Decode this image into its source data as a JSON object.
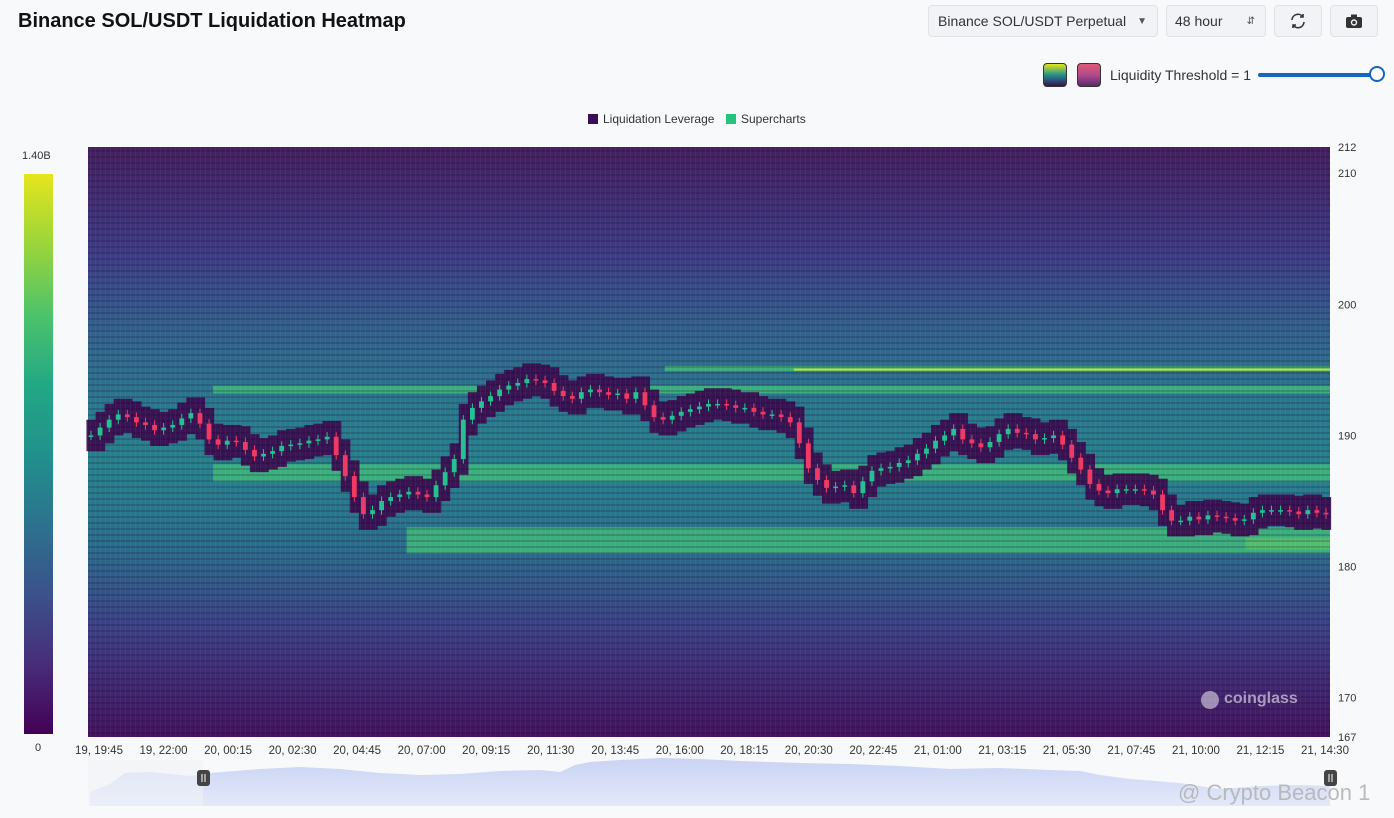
{
  "header": {
    "title": "Binance SOL/USDT Liquidation Heatmap",
    "pair_select": "Binance SOL/USDT Perpetual",
    "range_select": "48 hour"
  },
  "icons": {
    "refresh": "refresh-icon",
    "camera": "camera-icon",
    "palette_viridis": "viridis-palette-icon",
    "palette_rose": "rose-palette-icon"
  },
  "threshold": {
    "label": "Liquidity Threshold = 1",
    "value": 1
  },
  "colorbar": {
    "max_label": "1.40B",
    "min_label": "0"
  },
  "watermarks": {
    "brand": "coinglass",
    "credit": "@ Crypto Beacon 1"
  },
  "colors": {
    "up": "#26c193",
    "down": "#ef3a63",
    "navigator": "#d5dcf3"
  },
  "chart_data": {
    "type": "heatmap",
    "title": "Binance SOL/USDT Liquidation Heatmap",
    "legend": [
      {
        "name": "Liquidation Leverage",
        "color": "#3b0f58"
      },
      {
        "name": "Supercharts",
        "color": "#27c27e"
      }
    ],
    "x_ticks": [
      "19, 19:45",
      "19, 22:00",
      "20, 00:15",
      "20, 02:30",
      "20, 04:45",
      "20, 07:00",
      "20, 09:15",
      "20, 11:30",
      "20, 13:45",
      "20, 16:00",
      "20, 18:15",
      "20, 20:30",
      "20, 22:45",
      "21, 01:00",
      "21, 03:15",
      "21, 05:30",
      "21, 07:45",
      "21, 10:00",
      "21, 12:15",
      "21, 14:30"
    ],
    "y_ticks": [
      212,
      210,
      200,
      190,
      180,
      170,
      167
    ],
    "ylim": [
      167,
      212
    ],
    "price_line": [
      190,
      190.6,
      191.2,
      191.6,
      191.4,
      191,
      190.8,
      190.4,
      190.6,
      190.8,
      191.3,
      191.7,
      190.9,
      189.7,
      189.3,
      189.6,
      189.5,
      188.9,
      188.4,
      188.6,
      188.8,
      189.2,
      189.3,
      189.4,
      189.6,
      189.7,
      189.9,
      188.5,
      186.9,
      185.3,
      184,
      184.3,
      185,
      185.3,
      185.5,
      185.7,
      185.5,
      185.3,
      186.2,
      187.2,
      188.2,
      191.2,
      192.1,
      192.6,
      193,
      193.5,
      193.8,
      194,
      194.3,
      194.2,
      194,
      193.4,
      193,
      192.8,
      193.3,
      193.5,
      193.3,
      193.1,
      193.2,
      192.8,
      193.3,
      192.3,
      191.4,
      191.2,
      191.5,
      191.8,
      192,
      192.2,
      192.4,
      192.4,
      192.3,
      192.1,
      192.1,
      191.8,
      191.6,
      191.6,
      191.4,
      191,
      189.4,
      187.5,
      186.6,
      186,
      186.1,
      186.2,
      185.6,
      186.5,
      187.3,
      187.5,
      187.6,
      187.9,
      188.1,
      188.6,
      189,
      189.6,
      190,
      190.5,
      189.7,
      189.4,
      189.1,
      189.5,
      190.1,
      190.5,
      190.2,
      190.1,
      189.7,
      189.8,
      190,
      189.3,
      188.3,
      187.4,
      186.3,
      185.8,
      185.6,
      185.9,
      185.9,
      185.9,
      185.8,
      185.5,
      184.3,
      183.5,
      183.5,
      183.8,
      183.6,
      183.9,
      183.8,
      183.7,
      183.5,
      183.6,
      184.1,
      184.3,
      184.3,
      184.3,
      184.2,
      184,
      184.3,
      184.1,
      184
    ],
    "heat_bands": [
      {
        "from": 195.3,
        "to": 194.9,
        "intensity": 0.6,
        "start": "20, 16:00"
      },
      {
        "from": 195.1,
        "to": 195.0,
        "intensity": 1.0,
        "start": "20, 20:30"
      },
      {
        "from": 193.8,
        "to": 193.2,
        "intensity": 0.55,
        "start": "20, 00:15"
      },
      {
        "from": 182.2,
        "to": 181.3,
        "intensity": 0.95,
        "start": "21, 12:15"
      },
      {
        "from": 183.0,
        "to": 181.0,
        "intensity": 0.55,
        "start": "20, 07:00"
      },
      {
        "from": 187.8,
        "to": 186.5,
        "intensity": 0.5,
        "start": "20, 00:15"
      }
    ]
  }
}
